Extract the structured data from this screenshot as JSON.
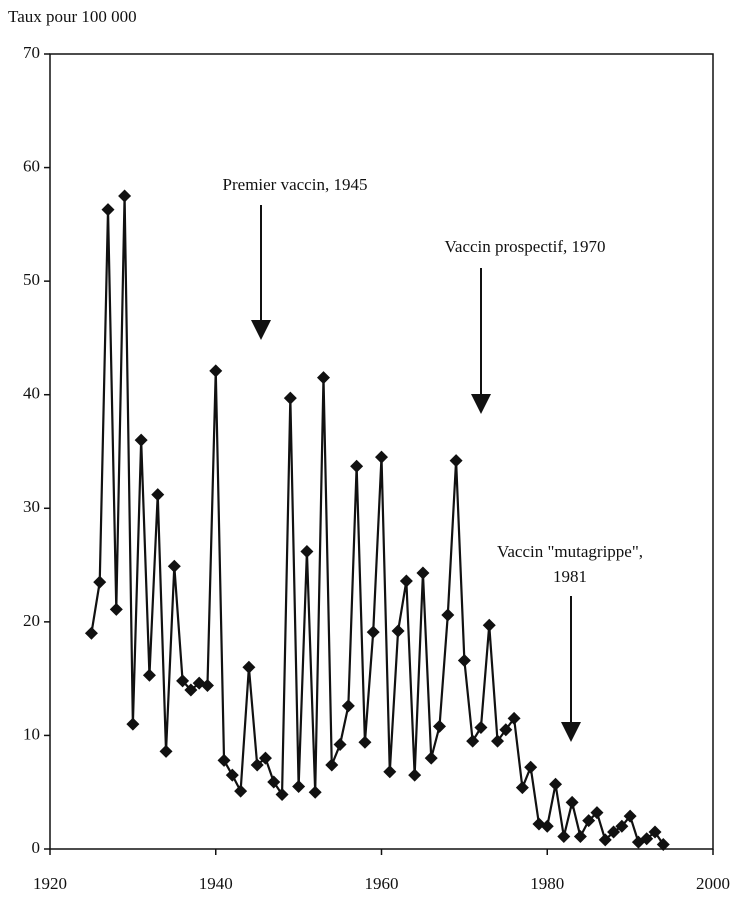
{
  "chart_data": {
    "type": "line",
    "ylabel": "Taux pour 100 000",
    "x": [
      1925,
      1926,
      1927,
      1928,
      1929,
      1930,
      1931,
      1932,
      1933,
      1934,
      1935,
      1936,
      1937,
      1938,
      1939,
      1940,
      1941,
      1942,
      1943,
      1944,
      1945,
      1946,
      1947,
      1948,
      1949,
      1950,
      1951,
      1952,
      1953,
      1954,
      1955,
      1956,
      1957,
      1958,
      1959,
      1960,
      1961,
      1962,
      1963,
      1964,
      1965,
      1966,
      1967,
      1968,
      1969,
      1970,
      1971,
      1972,
      1973,
      1974,
      1975,
      1976,
      1977,
      1978,
      1979,
      1980,
      1981,
      1982,
      1983,
      1984,
      1985,
      1986,
      1987,
      1988,
      1989,
      1990,
      1991,
      1992,
      1993,
      1994
    ],
    "series": [
      {
        "color": "#111111",
        "values": [
          19,
          23.5,
          56.3,
          21.1,
          57.5,
          11,
          36,
          15.3,
          31.2,
          8.6,
          24.9,
          14.8,
          14,
          14.6,
          14.4,
          42.1,
          7.8,
          6.5,
          5.1,
          16,
          7.4,
          8,
          5.9,
          4.8,
          39.7,
          5.5,
          26.2,
          5,
          41.5,
          7.4,
          9.2,
          12.6,
          33.7,
          9.4,
          19.1,
          34.5,
          6.8,
          19.2,
          23.6,
          6.5,
          24.3,
          8,
          10.8,
          20.6,
          34.2,
          16.6,
          9.5,
          10.7,
          19.7,
          9.5,
          10.5,
          11.5,
          5.4,
          7.2,
          2.2,
          2,
          5.7,
          1.1,
          4.1,
          1.1,
          2.5,
          3.2,
          0.8,
          1.5,
          2,
          2.9,
          0.6,
          0.9,
          1.5,
          0.4
        ]
      }
    ],
    "xlim": [
      1920,
      2000
    ],
    "xticks": [
      1920,
      1940,
      1960,
      1980,
      2000
    ],
    "ylim": [
      0,
      70
    ],
    "yticks": [
      0,
      10,
      20,
      30,
      40,
      50,
      60,
      70
    ],
    "annotations": [
      [
        "Premier vaccin, 1945"
      ],
      [
        "Vaccin prospectif, 1970"
      ],
      [
        "Vaccin \"mutagrippe\",",
        "1981"
      ]
    ]
  }
}
